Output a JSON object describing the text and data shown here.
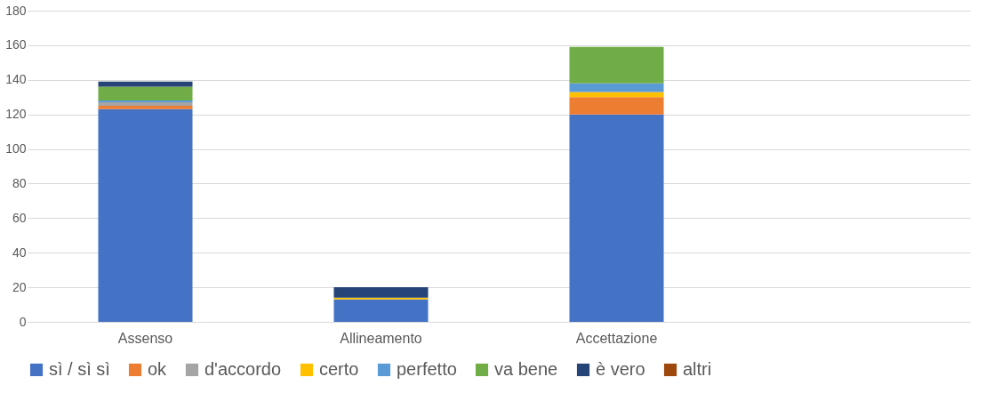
{
  "chart_data": {
    "type": "bar",
    "stacked": true,
    "categories": [
      "Assenso",
      "Allineamento",
      "Accettazione",
      null
    ],
    "series": [
      {
        "name": "sì / sì sì",
        "color": "#4472c4",
        "values": [
          123,
          13,
          120,
          null
        ]
      },
      {
        "name": "ok",
        "color": "#ed7d31",
        "values": [
          2,
          0,
          10,
          null
        ]
      },
      {
        "name": "d'accordo",
        "color": "#a5a5a5",
        "values": [
          2,
          0,
          0,
          null
        ]
      },
      {
        "name": "certo",
        "color": "#ffc000",
        "values": [
          0,
          1,
          3,
          null
        ]
      },
      {
        "name": "perfetto",
        "color": "#5b9bd5",
        "values": [
          1,
          0,
          5,
          null
        ]
      },
      {
        "name": "va bene",
        "color": "#70ad47",
        "values": [
          8,
          0,
          21,
          null
        ]
      },
      {
        "name": "è vero",
        "color": "#264478",
        "values": [
          3,
          6,
          0,
          null
        ]
      },
      {
        "name": "altri",
        "color": "#9e480e",
        "values": [
          0,
          0,
          0,
          null
        ]
      }
    ],
    "ylim": [
      0,
      180
    ],
    "yticks": [
      0,
      20,
      40,
      60,
      80,
      100,
      120,
      140,
      160,
      180
    ],
    "grid": "y",
    "legend": "bottom"
  }
}
